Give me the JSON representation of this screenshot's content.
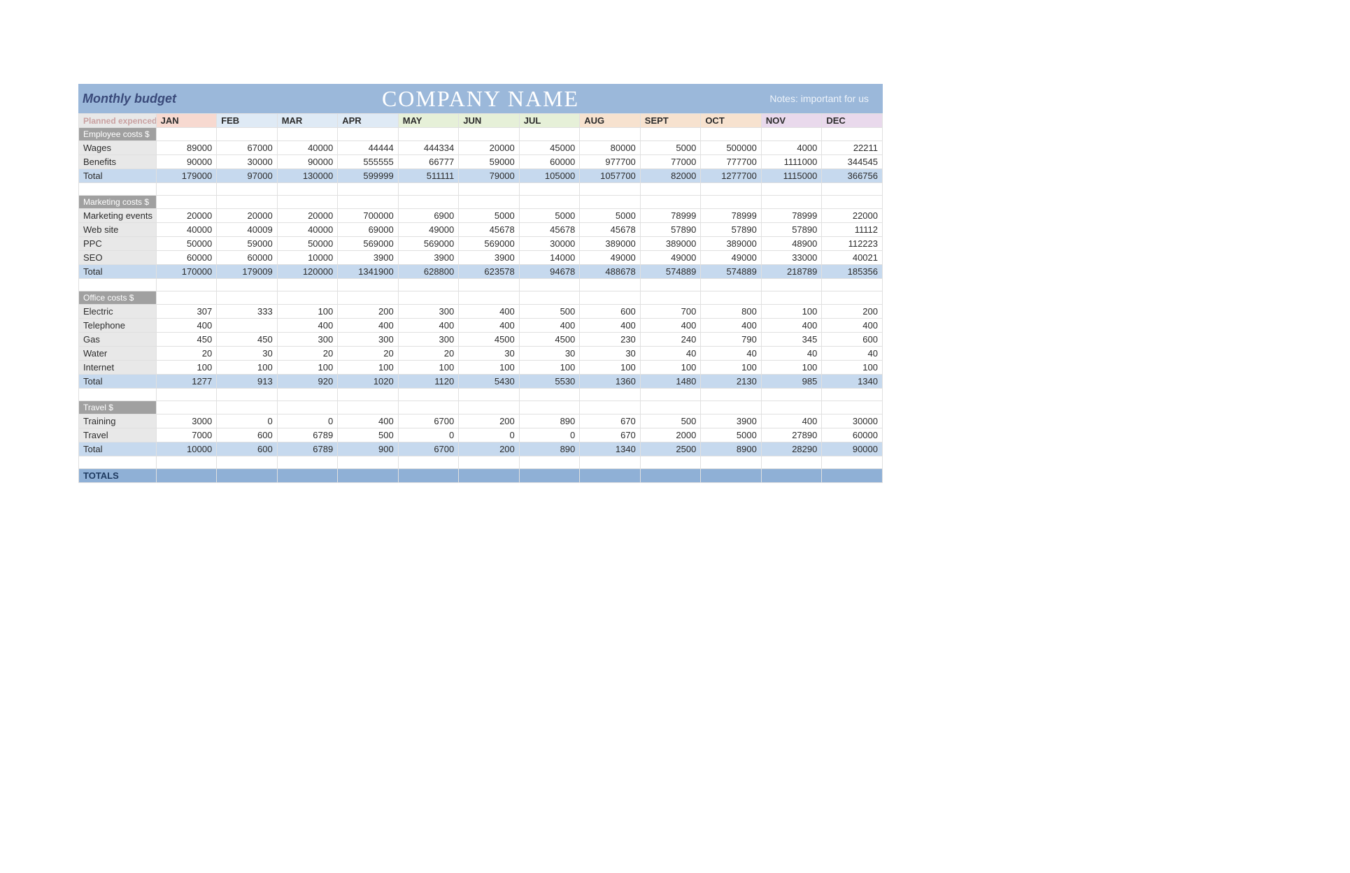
{
  "header": {
    "title_left": "Monthly budget",
    "title_center": "COMPANY NAME",
    "title_right": "Notes: important for us"
  },
  "labels": {
    "planned": "Planned expenced",
    "total": "Total",
    "totals": "TOTALS"
  },
  "months": [
    "JAN",
    "FEB",
    "MAR",
    "APR",
    "MAY",
    "JUN",
    "JUL",
    "AUG",
    "SEPT",
    "OCT",
    "NOV",
    "DEC"
  ],
  "month_colors": [
    "#f7d9d0",
    "#dfeaf5",
    "#dfeaf5",
    "#dfeaf5",
    "#e6f0d8",
    "#e6f0d8",
    "#e6f0d8",
    "#f7e2cf",
    "#f7e2cf",
    "#f7e2cf",
    "#e9d9ec",
    "#e9d9ec"
  ],
  "sections": [
    {
      "name": "Employee costs $",
      "rows": [
        {
          "label": "Wages",
          "v": [
            89000,
            67000,
            40000,
            44444,
            444334,
            20000,
            45000,
            80000,
            5000,
            500000,
            4000,
            22211
          ]
        },
        {
          "label": "Benefits",
          "v": [
            90000,
            30000,
            90000,
            555555,
            66777,
            59000,
            60000,
            977700,
            77000,
            777700,
            1111000,
            344545
          ]
        }
      ],
      "total": [
        179000,
        97000,
        130000,
        599999,
        511111,
        79000,
        105000,
        1057700,
        82000,
        1277700,
        1115000,
        366756
      ]
    },
    {
      "name": "Marketing costs $",
      "rows": [
        {
          "label": "Marketing events",
          "v": [
            20000,
            20000,
            20000,
            700000,
            6900,
            5000,
            5000,
            5000,
            78999,
            78999,
            78999,
            22000
          ]
        },
        {
          "label": "Web site",
          "v": [
            40000,
            40009,
            40000,
            69000,
            49000,
            45678,
            45678,
            45678,
            57890,
            57890,
            57890,
            11112
          ]
        },
        {
          "label": "PPC",
          "v": [
            50000,
            59000,
            50000,
            569000,
            569000,
            569000,
            30000,
            389000,
            389000,
            389000,
            48900,
            112223
          ]
        },
        {
          "label": "SEO",
          "v": [
            60000,
            60000,
            10000,
            3900,
            3900,
            3900,
            14000,
            49000,
            49000,
            49000,
            33000,
            40021
          ]
        }
      ],
      "total": [
        170000,
        179009,
        120000,
        1341900,
        628800,
        623578,
        94678,
        488678,
        574889,
        574889,
        218789,
        185356
      ]
    },
    {
      "name": "Office costs $",
      "rows": [
        {
          "label": "Electric",
          "v": [
            307,
            333,
            100,
            200,
            300,
            400,
            500,
            600,
            700,
            800,
            100,
            200
          ]
        },
        {
          "label": "Telephone",
          "v": [
            400,
            null,
            400,
            400,
            400,
            400,
            400,
            400,
            400,
            400,
            400,
            400
          ]
        },
        {
          "label": "Gas",
          "v": [
            450,
            450,
            300,
            300,
            300,
            4500,
            4500,
            230,
            240,
            790,
            345,
            600
          ]
        },
        {
          "label": "Water",
          "v": [
            20,
            30,
            20,
            20,
            20,
            30,
            30,
            30,
            40,
            40,
            40,
            40
          ]
        },
        {
          "label": "Internet",
          "v": [
            100,
            100,
            100,
            100,
            100,
            100,
            100,
            100,
            100,
            100,
            100,
            100
          ]
        }
      ],
      "total": [
        1277,
        913,
        920,
        1020,
        1120,
        5430,
        5530,
        1360,
        1480,
        2130,
        985,
        1340
      ]
    },
    {
      "name": "Travel $",
      "rows": [
        {
          "label": "Training",
          "v": [
            3000,
            0,
            0,
            400,
            6700,
            200,
            890,
            670,
            500,
            3900,
            400,
            30000
          ]
        },
        {
          "label": "Travel",
          "v": [
            7000,
            600,
            6789,
            500,
            0,
            0,
            0,
            670,
            2000,
            5000,
            27890,
            60000
          ]
        }
      ],
      "total": [
        10000,
        600,
        6789,
        900,
        6700,
        200,
        890,
        1340,
        2500,
        8900,
        28290,
        90000
      ]
    }
  ]
}
